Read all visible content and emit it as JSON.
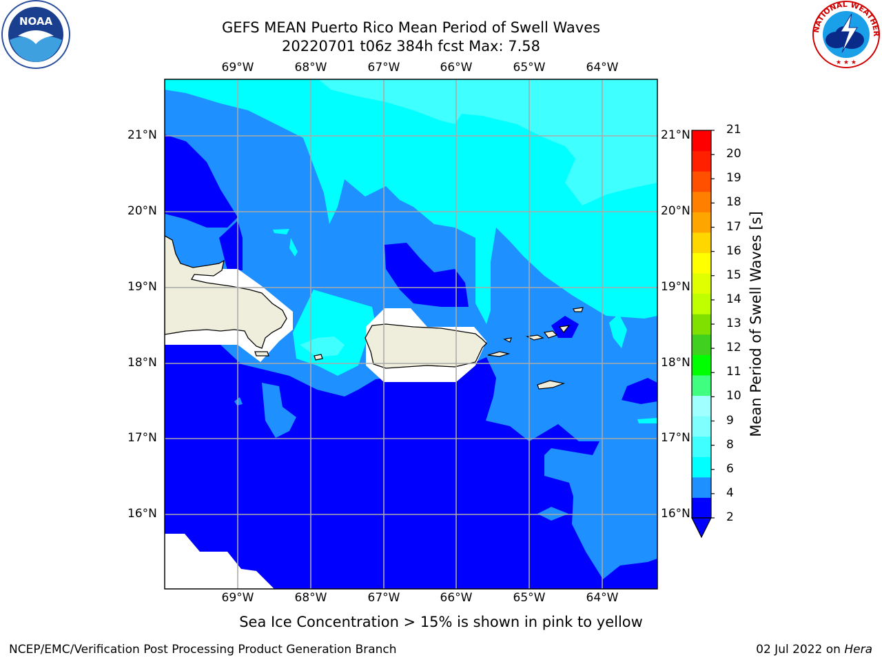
{
  "header": {
    "title_line1": "GEFS MEAN Puerto Rico Mean Period of Swell Waves",
    "title_line2": "20220701 t06z 384h fcst   Max: 7.58"
  },
  "logos": {
    "left": {
      "name": "noaa-logo",
      "text": "NOAA"
    },
    "right": {
      "name": "national-weather-service-logo",
      "text": "NATIONAL WEATHER SERVICE"
    }
  },
  "map": {
    "lon_labels": [
      "69°W",
      "68°W",
      "67°W",
      "66°W",
      "65°W",
      "64°W"
    ],
    "lat_labels": [
      "21°N",
      "20°N",
      "19°N",
      "18°N",
      "17°N",
      "16°N"
    ],
    "lon_extent": [
      -70.0,
      -63.25
    ],
    "lat_extent": [
      15.0,
      21.75
    ]
  },
  "colorbar": {
    "title": "Mean Period of Swell Waves [s]",
    "ticks": [
      "21",
      "20",
      "19",
      "18",
      "17",
      "16",
      "15",
      "14",
      "13",
      "12",
      "11",
      "10",
      "9",
      "8",
      "6",
      "4",
      "2"
    ],
    "colors": [
      "#0000ff",
      "#1e90ff",
      "#00ffff",
      "#40ffff",
      "#80ffff",
      "#a0ffff",
      "#40ff80",
      "#00ff00",
      "#40d020",
      "#80e000",
      "#c0ff00",
      "#e0ff00",
      "#ffff00",
      "#ffd700",
      "#ffa500",
      "#ff8000",
      "#ff5000",
      "#ff2000",
      "#ff0000"
    ]
  },
  "note": "Sea Ice Concentration > 15% is shown in pink to yellow",
  "footer": {
    "left": "NCEP/EMC/Verification Post Processing Product Generation Branch",
    "right_date": "02 Jul 2022 on ",
    "right_host": "Hera"
  }
}
